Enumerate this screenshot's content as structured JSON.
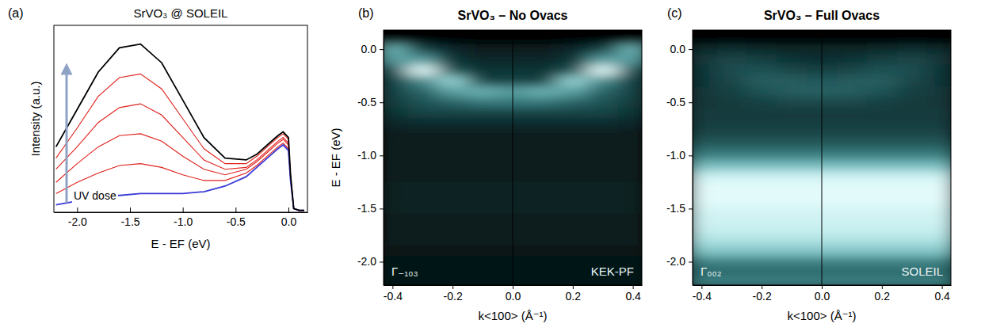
{
  "chart_data": [
    {
      "type": "line",
      "panel_label": "(a)",
      "title": "SrVO₃ @ SOLEIL",
      "x_label": "E - EF (eV)",
      "y_label": "Intensity (a.u.)",
      "annotation": "UV dose",
      "x": [
        -2.2,
        -2.0,
        -1.8,
        -1.6,
        -1.4,
        -1.2,
        -1.0,
        -0.8,
        -0.6,
        -0.4,
        -0.3,
        -0.2,
        -0.1,
        -0.05,
        0,
        0.02,
        0.05,
        0.1,
        0.15
      ],
      "series": [
        {
          "color": "#e0201b",
          "values": [
            0.1,
            0.16,
            0.21,
            0.25,
            0.26,
            0.24,
            0.2,
            0.17,
            0.17,
            0.21,
            0.25,
            0.3,
            0.35,
            0.37,
            0.34,
            0.18,
            0.02,
            0.01,
            0.01
          ]
        },
        {
          "color": "#e0201b",
          "values": [
            0.16,
            0.26,
            0.35,
            0.41,
            0.42,
            0.38,
            0.3,
            0.23,
            0.2,
            0.23,
            0.27,
            0.32,
            0.37,
            0.39,
            0.36,
            0.18,
            0.02,
            0.01,
            0.01
          ]
        },
        {
          "color": "#e0201b",
          "values": [
            0.23,
            0.35,
            0.48,
            0.56,
            0.58,
            0.52,
            0.4,
            0.28,
            0.23,
            0.24,
            0.28,
            0.33,
            0.38,
            0.4,
            0.37,
            0.19,
            0.02,
            0.01,
            0.01
          ]
        },
        {
          "color": "#e0201b",
          "values": [
            0.29,
            0.45,
            0.62,
            0.72,
            0.74,
            0.66,
            0.5,
            0.34,
            0.26,
            0.26,
            0.3,
            0.35,
            0.4,
            0.42,
            0.39,
            0.19,
            0.02,
            0.01,
            0.01
          ]
        },
        {
          "color": "#3a3ad8",
          "values": [
            0.04,
            0.06,
            0.08,
            0.09,
            0.1,
            0.1,
            0.1,
            0.11,
            0.14,
            0.19,
            0.24,
            0.29,
            0.34,
            0.36,
            0.33,
            0.17,
            0.02,
            0.01,
            0.01
          ]
        },
        {
          "color": "#000000",
          "values": [
            0.35,
            0.55,
            0.75,
            0.88,
            0.9,
            0.8,
            0.6,
            0.4,
            0.29,
            0.28,
            0.31,
            0.36,
            0.41,
            0.43,
            0.4,
            0.2,
            0.02,
            0.01,
            0.01
          ]
        }
      ],
      "xlim": [
        -2.22,
        0.18
      ],
      "ylim": [
        0,
        1
      ],
      "xticks": [
        {
          "value": -2,
          "label": "-2.0"
        },
        -1.5,
        {
          "value": -1,
          "label": "-1.0"
        },
        -0.5,
        {
          "value": 0,
          "label": "0.0"
        }
      ],
      "tick_labels": "x"
    },
    {
      "type": "heatmap",
      "panel_label": "(b)",
      "title": "SrVO₃ – No Ovacs",
      "x_label": "k<100> (Å⁻¹)",
      "y_label": "E - EF (eV)",
      "annotations": [
        "Γ₋₁₀₃",
        "KEK-PF"
      ],
      "x": [
        -0.4,
        -0.3,
        -0.2,
        -0.1,
        0,
        0.1,
        0.2,
        0.3,
        0.4
      ],
      "y": [
        0.1,
        0,
        -0.1,
        -0.2,
        -0.3,
        -0.4,
        -0.5,
        -0.6,
        -0.7,
        -0.8,
        -0.9,
        -1.0,
        -1.1,
        -1.2,
        -1.3,
        -1.4,
        -1.5,
        -1.6,
        -1.7,
        -1.8,
        -1.9,
        -2.0,
        -2.1,
        -2.2
      ],
      "values": [
        [
          0,
          0,
          0,
          0,
          0,
          0,
          0,
          0,
          0
        ],
        [
          0.6,
          0.3,
          0.2,
          0.15,
          0.15,
          0.15,
          0.2,
          0.3,
          0.6
        ],
        [
          0.55,
          0.55,
          0.25,
          0.2,
          0.2,
          0.2,
          0.25,
          0.55,
          0.55
        ],
        [
          0.35,
          0.9,
          0.35,
          0.25,
          0.25,
          0.25,
          0.35,
          0.9,
          0.35
        ],
        [
          0.3,
          0.5,
          0.7,
          0.3,
          0.3,
          0.3,
          0.7,
          0.5,
          0.3
        ],
        [
          0.3,
          0.4,
          0.55,
          0.6,
          0.55,
          0.6,
          0.55,
          0.4,
          0.3
        ],
        [
          0.28,
          0.35,
          0.4,
          0.45,
          0.45,
          0.45,
          0.4,
          0.35,
          0.28
        ],
        [
          0.25,
          0.3,
          0.3,
          0.3,
          0.3,
          0.3,
          0.3,
          0.3,
          0.25
        ],
        [
          0.2,
          0.22,
          0.22,
          0.22,
          0.22,
          0.22,
          0.22,
          0.22,
          0.2
        ],
        [
          0.16,
          0.16,
          0.16,
          0.16,
          0.16,
          0.16,
          0.16,
          0.16,
          0.16
        ],
        [
          0.14,
          0.14,
          0.14,
          0.14,
          0.14,
          0.14,
          0.14,
          0.14,
          0.14
        ],
        [
          0.14,
          0.14,
          0.14,
          0.14,
          0.14,
          0.14,
          0.14,
          0.14,
          0.14
        ],
        [
          0.15,
          0.15,
          0.15,
          0.15,
          0.15,
          0.15,
          0.15,
          0.15,
          0.15
        ],
        [
          0.16,
          0.16,
          0.16,
          0.16,
          0.16,
          0.16,
          0.16,
          0.16,
          0.16
        ],
        [
          0.17,
          0.17,
          0.17,
          0.17,
          0.17,
          0.17,
          0.17,
          0.17,
          0.17
        ],
        [
          0.17,
          0.17,
          0.17,
          0.17,
          0.17,
          0.17,
          0.17,
          0.17,
          0.17
        ],
        [
          0.17,
          0.17,
          0.17,
          0.17,
          0.17,
          0.17,
          0.17,
          0.17,
          0.17
        ],
        [
          0.16,
          0.16,
          0.16,
          0.16,
          0.16,
          0.16,
          0.16,
          0.16,
          0.16
        ],
        [
          0.15,
          0.15,
          0.15,
          0.15,
          0.15,
          0.15,
          0.15,
          0.15,
          0.15
        ],
        [
          0.14,
          0.14,
          0.14,
          0.14,
          0.14,
          0.14,
          0.14,
          0.14,
          0.14
        ],
        [
          0.13,
          0.13,
          0.13,
          0.13,
          0.13,
          0.13,
          0.13,
          0.13,
          0.13
        ],
        [
          0.12,
          0.12,
          0.12,
          0.12,
          0.12,
          0.12,
          0.12,
          0.12,
          0.12
        ],
        [
          0.12,
          0.12,
          0.12,
          0.12,
          0.12,
          0.12,
          0.12,
          0.12,
          0.12
        ],
        [
          0.12,
          0.12,
          0.12,
          0.12,
          0.12,
          0.12,
          0.12,
          0.12,
          0.12
        ]
      ],
      "xlim": [
        -0.43,
        0.43
      ],
      "ylim": [
        -2.22,
        0.18
      ],
      "xticks": [
        -0.4,
        -0.2,
        {
          "value": 0,
          "label": "0.0"
        },
        0.2,
        0.4
      ],
      "yticks": [
        {
          "value": -2,
          "label": "-2.0"
        },
        -1.5,
        {
          "value": -1,
          "label": "-1.0"
        },
        -0.5,
        {
          "value": 0,
          "label": "0.0"
        }
      ]
    },
    {
      "type": "heatmap",
      "panel_label": "(c)",
      "title": "SrVO₃ – Full Ovacs",
      "x_label": "k<100> (Å⁻¹)",
      "annotations": [
        "Γ₀₀₂",
        "SOLEIL"
      ],
      "x": [
        -0.4,
        -0.3,
        -0.2,
        -0.1,
        0,
        0.1,
        0.2,
        0.3,
        0.4
      ],
      "y": [
        0.1,
        0,
        -0.1,
        -0.2,
        -0.3,
        -0.4,
        -0.5,
        -0.6,
        -0.7,
        -0.8,
        -0.9,
        -1.0,
        -1.1,
        -1.2,
        -1.3,
        -1.4,
        -1.5,
        -1.6,
        -1.7,
        -1.8,
        -1.9,
        -2.0,
        -2.1,
        -2.2
      ],
      "values": [
        [
          0,
          0,
          0,
          0,
          0,
          0,
          0,
          0,
          0
        ],
        [
          0.2,
          0.22,
          0.2,
          0.18,
          0.18,
          0.18,
          0.2,
          0.22,
          0.2
        ],
        [
          0.25,
          0.3,
          0.28,
          0.24,
          0.22,
          0.24,
          0.28,
          0.3,
          0.25
        ],
        [
          0.24,
          0.32,
          0.33,
          0.3,
          0.28,
          0.3,
          0.33,
          0.32,
          0.24
        ],
        [
          0.24,
          0.3,
          0.36,
          0.36,
          0.35,
          0.36,
          0.36,
          0.3,
          0.24
        ],
        [
          0.25,
          0.28,
          0.33,
          0.36,
          0.37,
          0.36,
          0.33,
          0.28,
          0.25
        ],
        [
          0.25,
          0.26,
          0.28,
          0.3,
          0.3,
          0.3,
          0.28,
          0.26,
          0.25
        ],
        [
          0.26,
          0.26,
          0.26,
          0.26,
          0.26,
          0.26,
          0.26,
          0.26,
          0.26
        ],
        [
          0.27,
          0.27,
          0.27,
          0.27,
          0.27,
          0.27,
          0.27,
          0.27,
          0.27
        ],
        [
          0.3,
          0.3,
          0.3,
          0.3,
          0.3,
          0.3,
          0.3,
          0.3,
          0.3
        ],
        [
          0.36,
          0.36,
          0.36,
          0.36,
          0.36,
          0.36,
          0.36,
          0.36,
          0.36
        ],
        [
          0.45,
          0.45,
          0.45,
          0.45,
          0.45,
          0.45,
          0.45,
          0.45,
          0.45
        ],
        [
          0.6,
          0.6,
          0.6,
          0.6,
          0.6,
          0.6,
          0.6,
          0.6,
          0.6
        ],
        [
          0.8,
          0.8,
          0.8,
          0.8,
          0.8,
          0.8,
          0.8,
          0.8,
          0.8
        ],
        [
          0.85,
          0.85,
          0.85,
          0.85,
          0.85,
          0.85,
          0.85,
          0.85,
          0.85
        ],
        [
          0.85,
          0.85,
          0.85,
          0.85,
          0.85,
          0.85,
          0.85,
          0.85,
          0.85
        ],
        [
          0.82,
          0.82,
          0.82,
          0.82,
          0.82,
          0.82,
          0.82,
          0.82,
          0.82
        ],
        [
          0.8,
          0.8,
          0.8,
          0.8,
          0.8,
          0.8,
          0.8,
          0.8,
          0.8
        ],
        [
          0.78,
          0.78,
          0.78,
          0.78,
          0.78,
          0.78,
          0.78,
          0.78,
          0.78
        ],
        [
          0.72,
          0.72,
          0.72,
          0.72,
          0.72,
          0.72,
          0.72,
          0.72,
          0.72
        ],
        [
          0.62,
          0.62,
          0.62,
          0.62,
          0.62,
          0.62,
          0.62,
          0.62,
          0.62
        ],
        [
          0.45,
          0.45,
          0.45,
          0.45,
          0.45,
          0.45,
          0.45,
          0.45,
          0.45
        ],
        [
          0.4,
          0.4,
          0.4,
          0.4,
          0.4,
          0.4,
          0.4,
          0.4,
          0.4
        ],
        [
          0.45,
          0.45,
          0.45,
          0.45,
          0.45,
          0.45,
          0.45,
          0.45,
          0.45
        ]
      ],
      "xlim": [
        -0.43,
        0.43
      ],
      "ylim": [
        -2.22,
        0.18
      ],
      "xticks": [
        -0.4,
        -0.2,
        {
          "value": 0,
          "label": "0.0"
        },
        0.2,
        0.4
      ],
      "yticks": [
        {
          "value": -2,
          "label": "-2.0"
        },
        -1.5,
        {
          "value": -1,
          "label": "-1.0"
        },
        -0.5,
        {
          "value": 0,
          "label": "0.0"
        }
      ]
    }
  ]
}
